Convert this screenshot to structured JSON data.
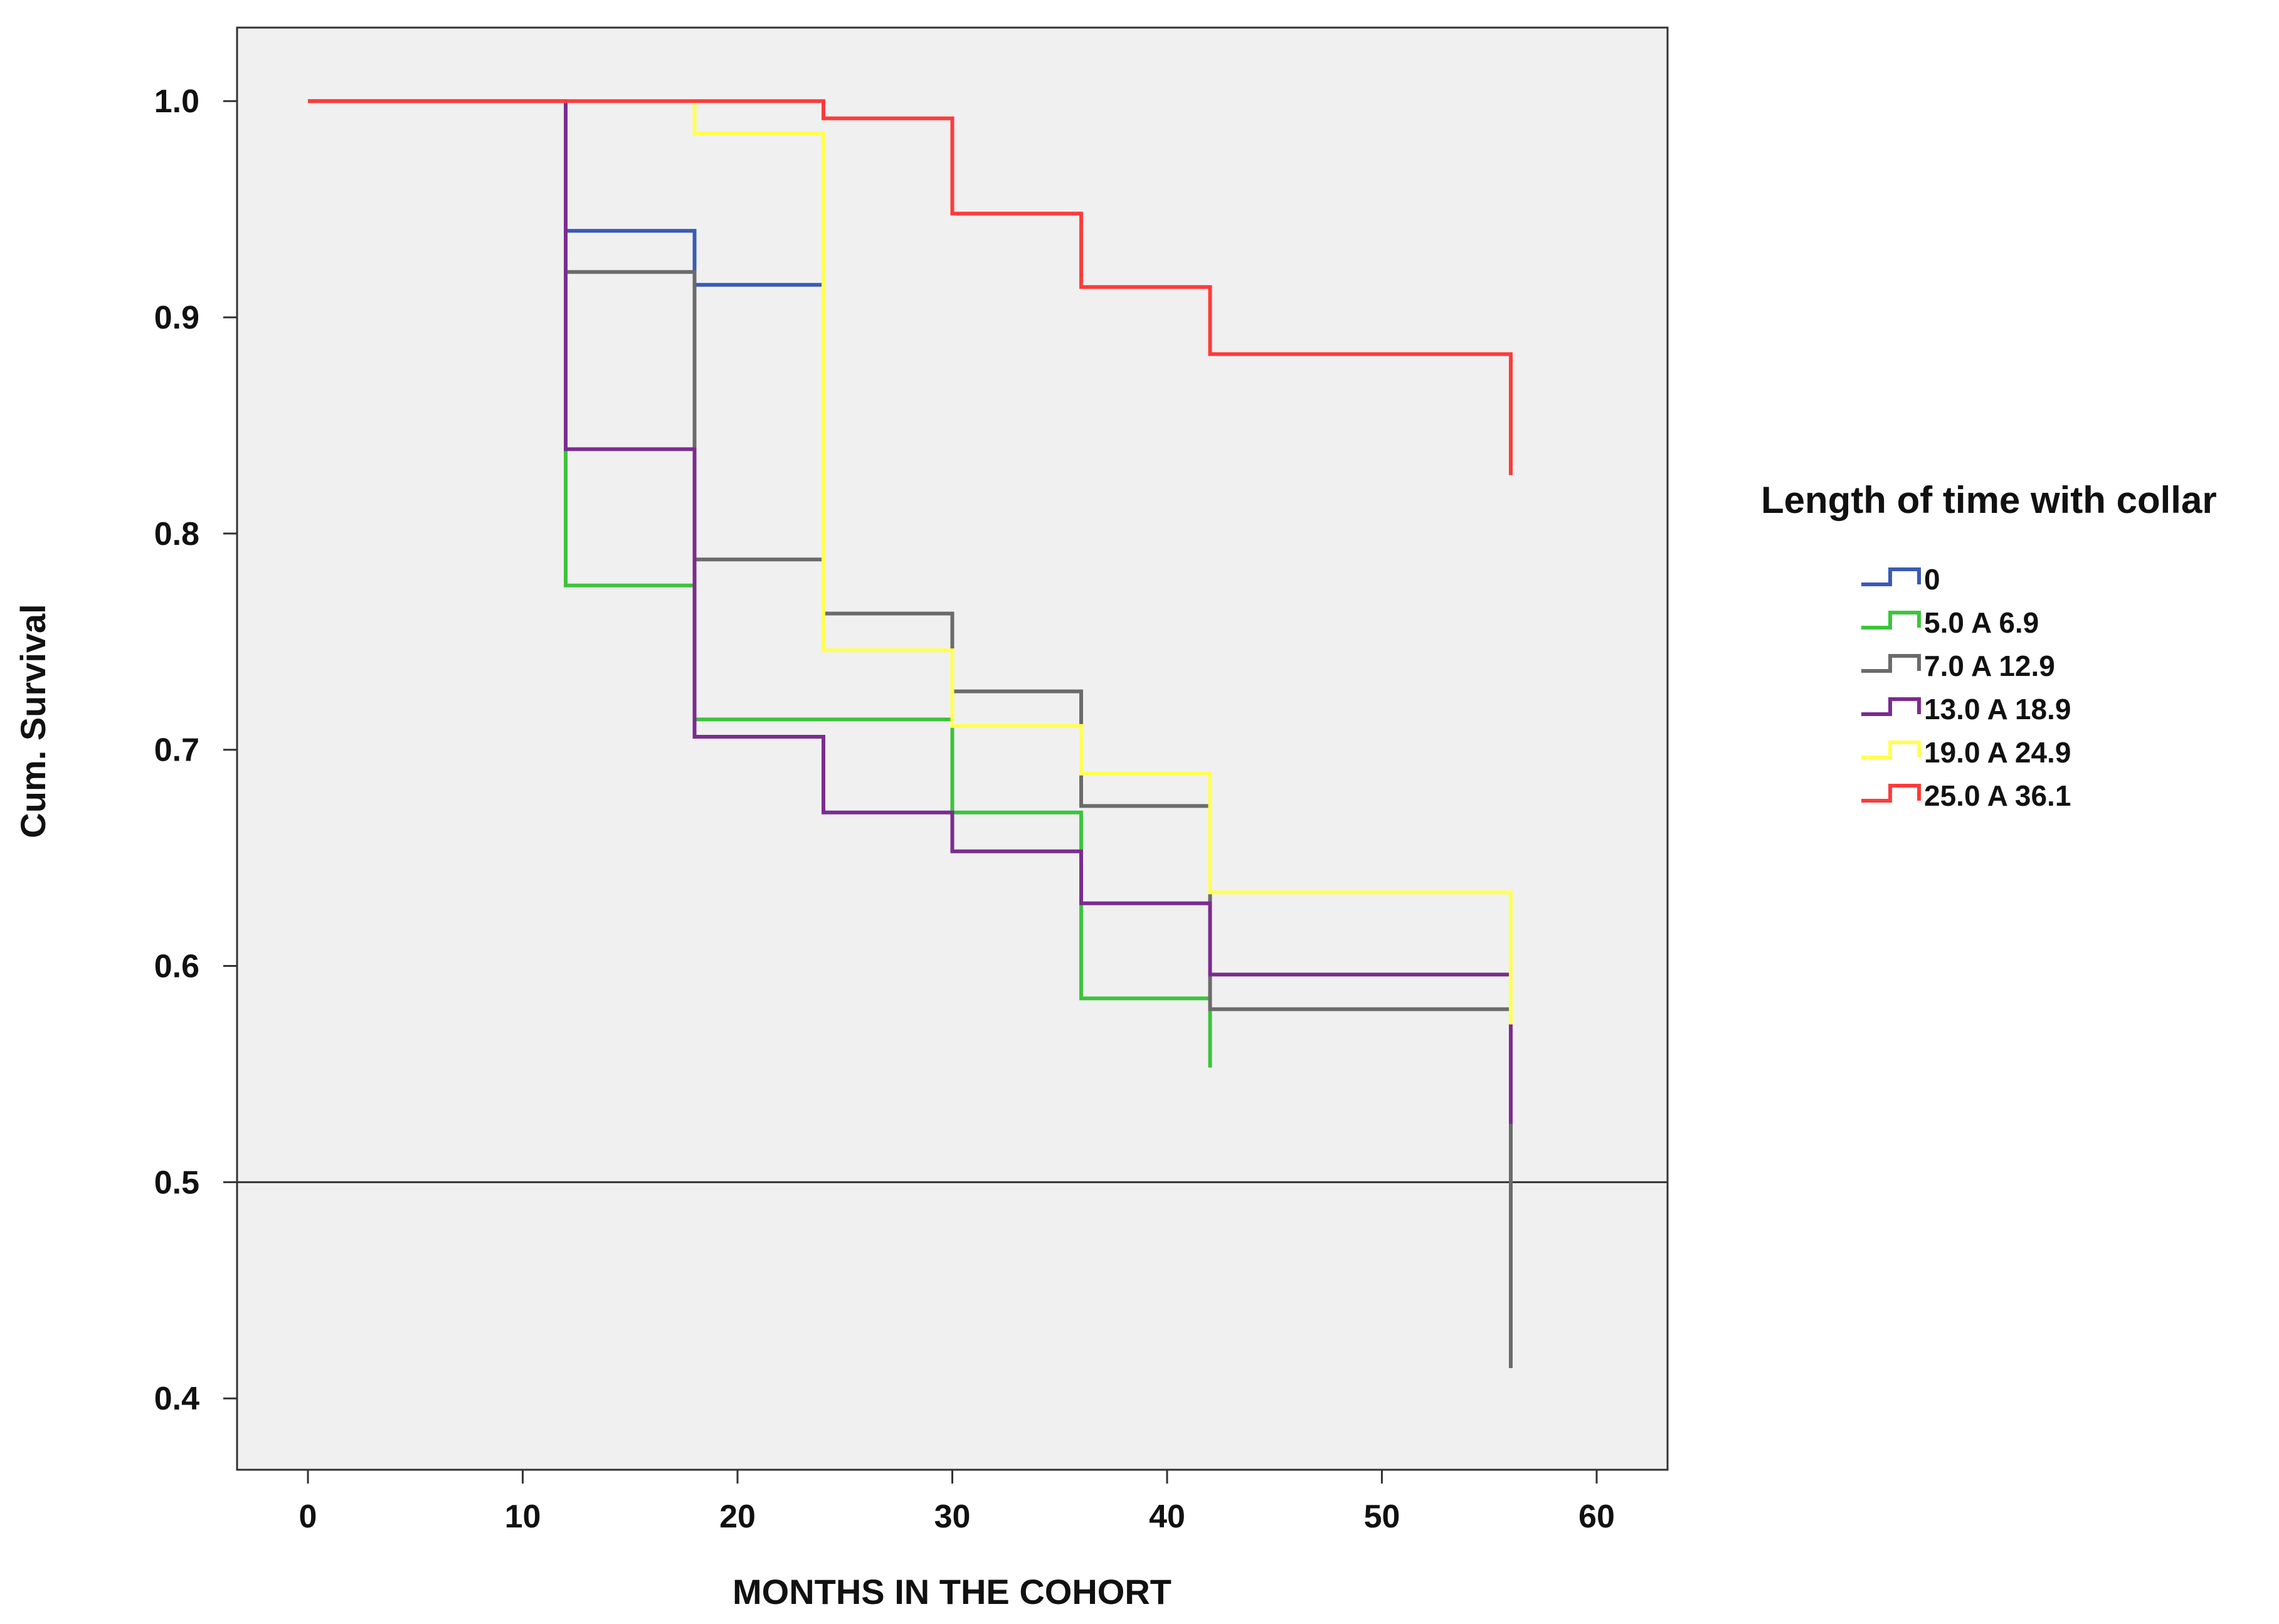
{
  "chart_data": {
    "type": "line",
    "subtype": "step",
    "title": "",
    "xlabel": "MONTHS IN THE COHORT",
    "ylabel": "Cum. Survival",
    "xlim": [
      -3.3,
      63.3
    ],
    "ylim": [
      0.367,
      1.034
    ],
    "xticks": [
      0,
      10,
      20,
      30,
      40,
      50,
      60
    ],
    "yticks": [
      0.4,
      0.5,
      0.6,
      0.7,
      0.8,
      0.9,
      1.0
    ],
    "ytick_labels": [
      "0.4",
      "0.5",
      "0.6",
      "0.7",
      "0.8",
      "0.9",
      "1.0"
    ],
    "reference_line": {
      "y": 0.5,
      "color": "#333333"
    },
    "legend": {
      "title": "Length of time with collar",
      "position": "right"
    },
    "series": [
      {
        "name": "0",
        "color": "#3a5bb5",
        "points": [
          [
            0,
            1.0
          ],
          [
            12,
            1.0
          ],
          [
            12,
            0.94
          ],
          [
            18,
            0.94
          ],
          [
            18,
            0.915
          ],
          [
            24,
            0.915
          ],
          [
            24,
            0.885
          ]
        ]
      },
      {
        "name": "5.0 A 6.9",
        "color": "#3cc43c",
        "points": [
          [
            0,
            1.0
          ],
          [
            12,
            1.0
          ],
          [
            12,
            0.776
          ],
          [
            18,
            0.776
          ],
          [
            18,
            0.714
          ],
          [
            30,
            0.714
          ],
          [
            30,
            0.671
          ],
          [
            36,
            0.671
          ],
          [
            36,
            0.585
          ],
          [
            42,
            0.585
          ],
          [
            42,
            0.553
          ]
        ]
      },
      {
        "name": "7.0 A 12.9",
        "color": "#6b6b6b",
        "points": [
          [
            0,
            1.0
          ],
          [
            12,
            1.0
          ],
          [
            12,
            0.921
          ],
          [
            18,
            0.921
          ],
          [
            18,
            0.788
          ],
          [
            24,
            0.788
          ],
          [
            24,
            0.763
          ],
          [
            30,
            0.763
          ],
          [
            30,
            0.727
          ],
          [
            36,
            0.727
          ],
          [
            36,
            0.674
          ],
          [
            42,
            0.674
          ],
          [
            42,
            0.58
          ],
          [
            56,
            0.58
          ],
          [
            56,
            0.414
          ]
        ]
      },
      {
        "name": "13.0 A 18.9",
        "color": "#7b2c8f",
        "points": [
          [
            0,
            1.0
          ],
          [
            12,
            1.0
          ],
          [
            12,
            0.839
          ],
          [
            18,
            0.839
          ],
          [
            18,
            0.706
          ],
          [
            24,
            0.706
          ],
          [
            24,
            0.671
          ],
          [
            30,
            0.671
          ],
          [
            30,
            0.653
          ],
          [
            36,
            0.653
          ],
          [
            36,
            0.629
          ],
          [
            42,
            0.629
          ],
          [
            42,
            0.596
          ],
          [
            56,
            0.596
          ],
          [
            56,
            0.527
          ]
        ]
      },
      {
        "name": "19.0 A 24.9",
        "color": "#ffff55",
        "points": [
          [
            0,
            1.0
          ],
          [
            18,
            1.0
          ],
          [
            18,
            0.985
          ],
          [
            24,
            0.985
          ],
          [
            24,
            0.746
          ],
          [
            30,
            0.746
          ],
          [
            30,
            0.711
          ],
          [
            36,
            0.711
          ],
          [
            36,
            0.689
          ],
          [
            42,
            0.689
          ],
          [
            42,
            0.634
          ],
          [
            56,
            0.634
          ],
          [
            56,
            0.573
          ]
        ]
      },
      {
        "name": "25.0 A 36.1",
        "color": "#ff3b3b",
        "points": [
          [
            0,
            1.0
          ],
          [
            24,
            1.0
          ],
          [
            24,
            0.992
          ],
          [
            30,
            0.992
          ],
          [
            30,
            0.948
          ],
          [
            36,
            0.948
          ],
          [
            36,
            0.914
          ],
          [
            42,
            0.914
          ],
          [
            42,
            0.883
          ],
          [
            56,
            0.883
          ],
          [
            56,
            0.827
          ]
        ]
      }
    ]
  }
}
